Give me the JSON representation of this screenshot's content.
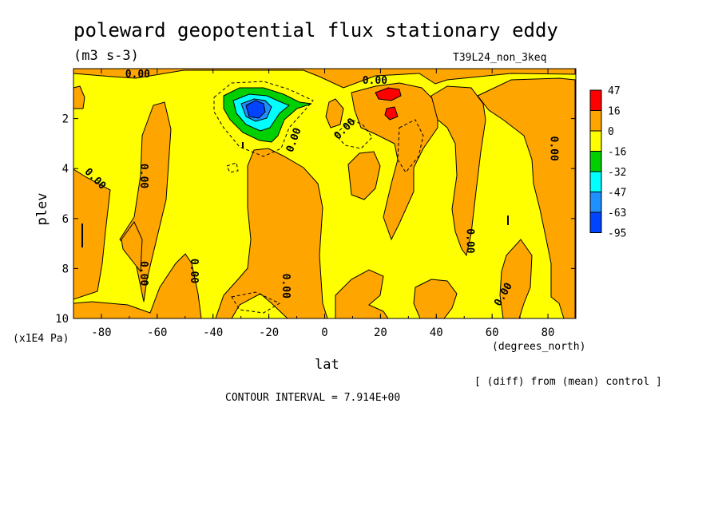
{
  "chart_data": {
    "type": "heatmap",
    "title": "poleward geopotential flux stationary eddy",
    "units": "(m3 s-3)",
    "run_label": "T39L24_non_3keq",
    "xlabel": "lat",
    "x_units": "(degrees_north)",
    "ylabel": "plev",
    "y_units": "(x1E4 Pa)",
    "note": "[ (diff) from (mean) control ]",
    "contour_interval": "CONTOUR INTERVAL = 7.914E+00",
    "xlim": [
      -90,
      90
    ],
    "ylim": [
      10,
      0
    ],
    "x_ticks": [
      -80,
      -60,
      -40,
      -20,
      0,
      20,
      40,
      60,
      80
    ],
    "x_tick_labels": [
      "-80",
      "-60",
      "-40",
      "-20",
      "0",
      "20",
      "40",
      "60",
      "80"
    ],
    "y_ticks": [
      2,
      4,
      6,
      8,
      10
    ],
    "y_tick_labels": [
      "2",
      "4",
      "6",
      "8",
      "10"
    ],
    "legend": {
      "placement": "right",
      "levels": [
        "47",
        "16",
        "0",
        "-16",
        "-32",
        "-47",
        "-63",
        "-95"
      ],
      "colors": [
        "#ff0000",
        "#ffa500",
        "#ffff00",
        "#00d000",
        "#00ffff",
        "#1e90ff",
        "#0044ff"
      ]
    },
    "contour_labels": [
      {
        "text": "0.00",
        "lat": -67,
        "plev": 0.35,
        "rot": 0
      },
      {
        "text": "0.00",
        "lat": 18,
        "plev": 0.6,
        "rot": 0
      },
      {
        "text": "0.00",
        "lat": -83,
        "plev": 4.5,
        "rot": 45
      },
      {
        "text": "0.00",
        "lat": -66,
        "plev": 4.3,
        "rot": 90
      },
      {
        "text": "0.00",
        "lat": -48,
        "plev": 8.1,
        "rot": 90
      },
      {
        "text": "0.00",
        "lat": -66,
        "plev": 8.2,
        "rot": 90
      },
      {
        "text": "0.00",
        "lat": -15,
        "plev": 8.7,
        "rot": 90
      },
      {
        "text": "0.00",
        "lat": -10,
        "plev": 2.9,
        "rot": -70
      },
      {
        "text": "0.00",
        "lat": 8,
        "plev": 2.5,
        "rot": -45
      },
      {
        "text": "0.00",
        "lat": 51,
        "plev": 6.9,
        "rot": 90
      },
      {
        "text": "0.00",
        "lat": 81,
        "plev": 3.2,
        "rot": 90
      },
      {
        "text": "0.00",
        "lat": 65,
        "plev": 9.1,
        "rot": -60
      }
    ]
  },
  "colors": {
    "background_field": "#ffff00",
    "positive_field": "#ffa500",
    "strong_positive": "#ff0000",
    "negative_1": "#00d000",
    "negative_2": "#00ffff",
    "negative_3": "#1e90ff",
    "negative_4": "#0044ff"
  }
}
